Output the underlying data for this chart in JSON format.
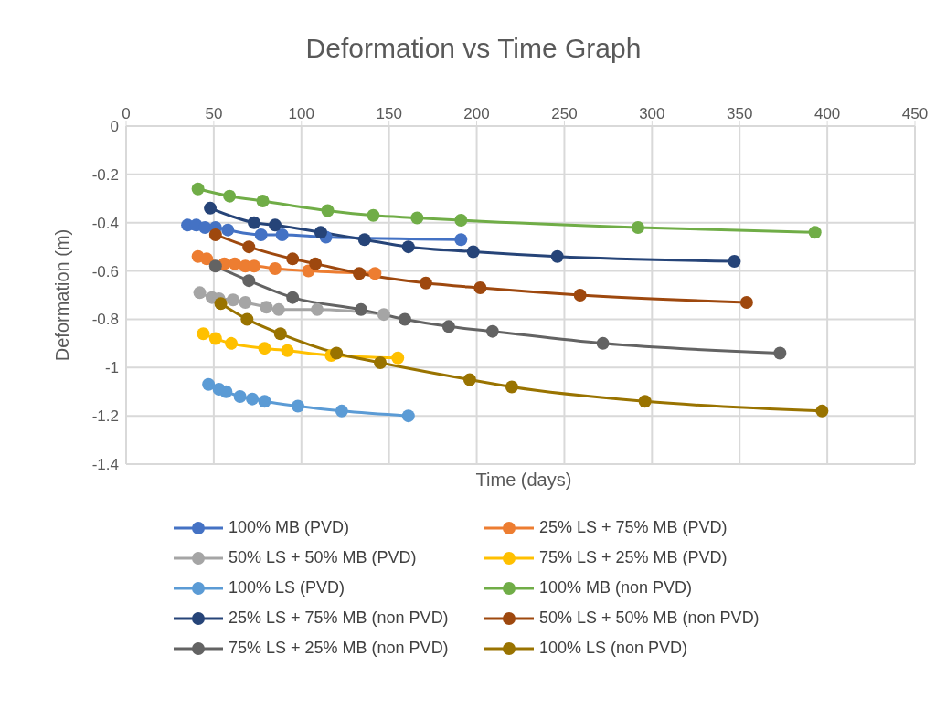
{
  "chart_data": {
    "type": "line",
    "title": "Deformation vs Time Graph",
    "xlabel": "Time (days)",
    "ylabel": "Deformation (m)",
    "xlim": [
      0,
      450
    ],
    "xticks": [
      0,
      50,
      100,
      150,
      200,
      250,
      300,
      350,
      400,
      450
    ],
    "ylim": [
      -1.4,
      0
    ],
    "yticks": [
      -1.4,
      -1.2,
      -1,
      -0.8,
      -0.6,
      -0.4,
      -0.2,
      0
    ],
    "grid": true,
    "legend": "bottom",
    "marker": "circle",
    "line_style": "solid",
    "series": [
      {
        "name": "100% MB (PVD)",
        "color": "#4472c4",
        "x": [
          35,
          40,
          45,
          51,
          58,
          77,
          89,
          114,
          191
        ],
        "values": [
          -0.41,
          -0.41,
          -0.42,
          -0.42,
          -0.43,
          -0.45,
          -0.45,
          -0.46,
          -0.47
        ]
      },
      {
        "name": "25% LS + 75% MB (PVD)",
        "color": "#ed7d31",
        "x": [
          41,
          46,
          56,
          62,
          68,
          73,
          85,
          104,
          142
        ],
        "values": [
          -0.54,
          -0.55,
          -0.57,
          -0.57,
          -0.58,
          -0.58,
          -0.59,
          -0.6,
          -0.61
        ]
      },
      {
        "name": "50% LS + 50% MB (PVD)",
        "color": "#a5a5a5",
        "x": [
          42,
          49,
          53,
          61,
          68,
          80,
          87,
          109,
          147
        ],
        "values": [
          -0.69,
          -0.71,
          -0.715,
          -0.72,
          -0.73,
          -0.75,
          -0.76,
          -0.76,
          -0.78
        ]
      },
      {
        "name": "75% LS + 25% MB (PVD)",
        "color": "#ffc000",
        "x": [
          44,
          51,
          60,
          79,
          92,
          117,
          155
        ],
        "values": [
          -0.86,
          -0.88,
          -0.9,
          -0.92,
          -0.93,
          -0.95,
          -0.96
        ]
      },
      {
        "name": "100% LS (PVD)",
        "color": "#5b9bd5",
        "x": [
          47,
          53,
          57,
          65,
          72,
          79,
          98,
          123,
          161
        ],
        "values": [
          -1.07,
          -1.09,
          -1.1,
          -1.12,
          -1.13,
          -1.14,
          -1.16,
          -1.18,
          -1.2
        ]
      },
      {
        "name": "100% MB (non PVD)",
        "color": "#70ad47",
        "x": [
          41,
          59,
          78,
          115,
          141,
          166,
          191,
          292,
          393
        ],
        "values": [
          -0.26,
          -0.29,
          -0.31,
          -0.35,
          -0.37,
          -0.38,
          -0.39,
          -0.42,
          -0.44
        ]
      },
      {
        "name": "25% LS + 75% MB (non PVD)",
        "color": "#264478",
        "x": [
          48,
          73,
          85,
          111,
          136,
          161,
          198,
          246,
          347
        ],
        "values": [
          -0.34,
          -0.4,
          -0.41,
          -0.44,
          -0.47,
          -0.5,
          -0.52,
          -0.54,
          -0.56
        ]
      },
      {
        "name": "50% LS + 50% MB (non PVD)",
        "color": "#9e480e",
        "x": [
          51,
          70,
          95,
          108,
          133,
          171,
          202,
          259,
          354
        ],
        "values": [
          -0.45,
          -0.5,
          -0.55,
          -0.57,
          -0.61,
          -0.65,
          -0.67,
          -0.7,
          -0.73
        ]
      },
      {
        "name": "75% LS + 25% MB (non PVD)",
        "color": "#636363",
        "x": [
          51,
          70,
          95,
          134,
          159,
          184,
          209,
          272,
          373
        ],
        "values": [
          -0.58,
          -0.64,
          -0.71,
          -0.76,
          -0.8,
          -0.83,
          -0.85,
          -0.9,
          -0.94
        ]
      },
      {
        "name": "100% LS (non PVD)",
        "color": "#997300",
        "x": [
          54,
          69,
          88,
          120,
          145,
          196,
          220,
          296,
          397
        ],
        "values": [
          -0.735,
          -0.8,
          -0.86,
          -0.94,
          -0.98,
          -1.05,
          -1.08,
          -1.14,
          -1.18
        ]
      }
    ]
  }
}
